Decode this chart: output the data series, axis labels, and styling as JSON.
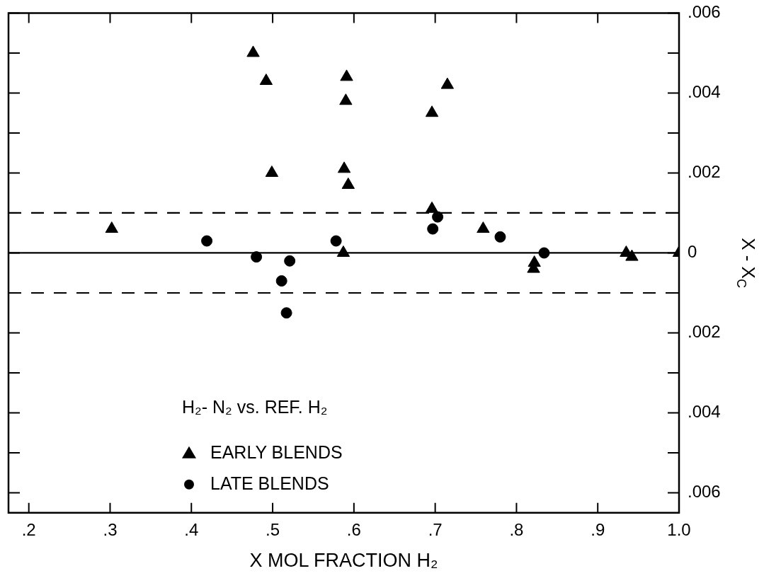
{
  "chart_data": {
    "type": "scatter",
    "xlabel": "X MOL FRACTION H₂",
    "ylabel": "X - X$_{C}$",
    "annotations": [
      "H₂- N₂ vs. REF. H₂"
    ],
    "legend": "bottom left",
    "grid": false,
    "xlim": [
      0.175,
      1.0
    ],
    "xticks": [
      {
        "value": 0.2,
        "label": ".2"
      },
      {
        "value": 0.3,
        "label": ".3"
      },
      {
        "value": 0.4,
        "label": ".4"
      },
      {
        "value": 0.5,
        "label": ".5"
      },
      {
        "value": 0.6,
        "label": ".6"
      },
      {
        "value": 0.7,
        "label": ".7"
      },
      {
        "value": 0.8,
        "label": ".8"
      },
      {
        "value": 0.9,
        "label": ".9"
      },
      {
        "value": 1.0,
        "label": "1.0"
      }
    ],
    "ylim": [
      -0.0065,
      0.006
    ],
    "yticks": [
      {
        "value": -0.006,
        "label": ".006"
      },
      {
        "value": -0.005,
        "label": null
      },
      {
        "value": -0.004,
        "label": ".004"
      },
      {
        "value": -0.003,
        "label": null
      },
      {
        "value": -0.002,
        "label": ".002"
      },
      {
        "value": -0.001,
        "label": null
      },
      0,
      {
        "value": 0.001,
        "label": null
      },
      {
        "value": 0.002,
        "label": ".002"
      },
      {
        "value": 0.003,
        "label": null
      },
      {
        "value": 0.004,
        "label": ".004"
      },
      {
        "value": 0.005,
        "label": null
      },
      {
        "value": 0.006,
        "label": ".006"
      }
    ],
    "ref_lines": [
      {
        "axis": "y",
        "value": 0.001,
        "line_style": "dashed"
      },
      {
        "axis": "y",
        "value": 0,
        "line_style": "solid"
      },
      {
        "axis": "y",
        "value": -0.001,
        "line_style": "dashed"
      }
    ],
    "series": [
      {
        "name": "EARLY BLENDS",
        "color": "#000000",
        "marker": "triangle",
        "x": [
          0.302,
          0.476,
          0.492,
          0.499,
          0.591,
          0.59,
          0.588,
          0.593,
          0.587,
          0.696,
          0.715,
          0.696,
          0.759,
          0.822,
          0.821,
          0.935,
          0.942,
          1.0
        ],
        "values": [
          0.0006,
          0.005,
          0.0043,
          0.002,
          0.0044,
          0.0038,
          0.0021,
          0.0017,
          0.0,
          0.0035,
          0.0042,
          0.0011,
          0.0006,
          -0.00025,
          -0.0004,
          0.0,
          -0.0001,
          0.0
        ]
      },
      {
        "name": "LATE BLENDS",
        "color": "#000000",
        "marker": "circle",
        "x": [
          0.419,
          0.48,
          0.521,
          0.511,
          0.578,
          0.517,
          0.697,
          0.703,
          0.78,
          0.834
        ],
        "values": [
          0.0003,
          -0.0001,
          -0.0002,
          -0.0007,
          0.0003,
          -0.0015,
          0.0006,
          0.0009,
          0.0004,
          0.0
        ]
      }
    ]
  }
}
